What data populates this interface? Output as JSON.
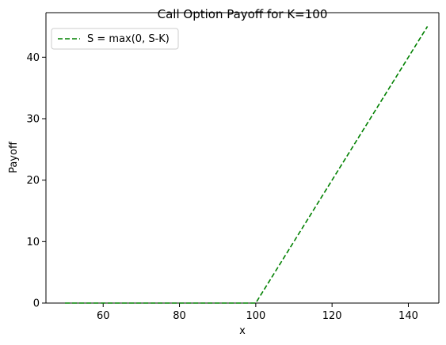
{
  "chart_data": {
    "type": "line",
    "title": "Call Option Payoff for K=100",
    "xlabel": "x",
    "ylabel": "Payoff",
    "xlim": [
      45,
      148
    ],
    "ylim": [
      0,
      47.25
    ],
    "xticks": [
      60,
      80,
      100,
      120,
      140
    ],
    "yticks": [
      0,
      10,
      20,
      30,
      40
    ],
    "grid": false,
    "legend_position": "top-left",
    "series": [
      {
        "name": "S = max(0, S-K)",
        "color": "#008000",
        "line_style": "dashed",
        "x": [
          50,
          100,
          145
        ],
        "y": [
          0,
          0,
          45
        ]
      }
    ]
  }
}
